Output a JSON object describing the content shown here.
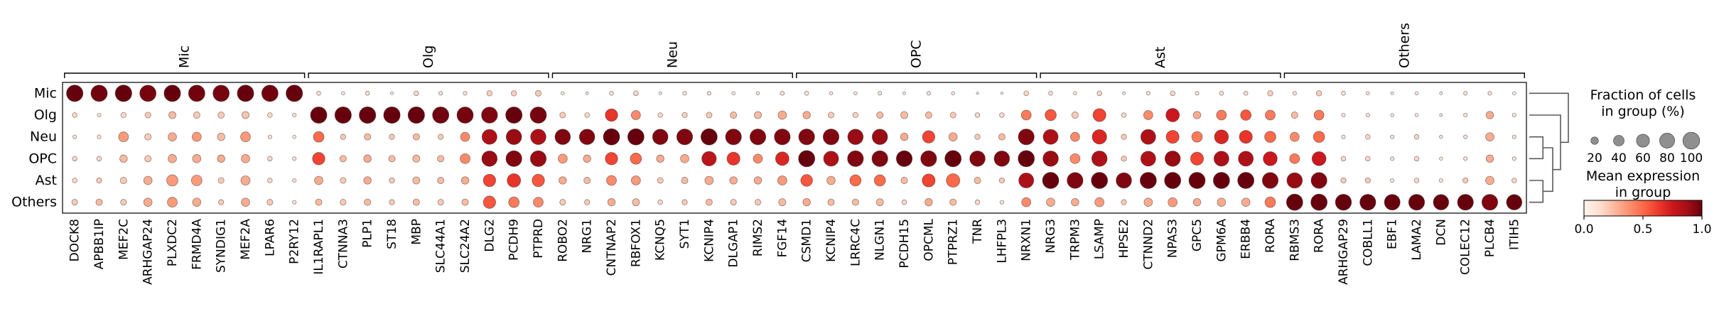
{
  "chart_data": {
    "type": "heatmap",
    "variant": "dotplot",
    "title": "",
    "rows": [
      "Mic",
      "Olg",
      "Neu",
      "OPC",
      "Ast",
      "Others"
    ],
    "col_groups": [
      {
        "name": "Mic",
        "genes": [
          "DOCK8",
          "APBB1IP",
          "MEF2C",
          "ARHGAP24",
          "PLXDC2",
          "FRMD4A",
          "SYNDIG1",
          "MEF2A",
          "LPAR6",
          "P2RY12"
        ]
      },
      {
        "name": "Olg",
        "genes": [
          "IL1RAPL1",
          "CTNNA3",
          "PLP1",
          "ST18",
          "MBP",
          "SLC44A1",
          "SLC24A2",
          "DLG2",
          "PCDH9",
          "PTPRD"
        ]
      },
      {
        "name": "Neu",
        "genes": [
          "ROBO2",
          "NRG1",
          "CNTNAP2",
          "RBFOX1",
          "KCNQ5",
          "SYT1",
          "KCNIP4",
          "DLGAP1",
          "RIMS2",
          "FGF14"
        ]
      },
      {
        "name": "OPC",
        "genes": [
          "CSMD1",
          "KCNIP4",
          "LRRC4C",
          "NLGN1",
          "PCDH15",
          "OPCML",
          "PTPRZ1",
          "TNR",
          "LHFPL3",
          "NRXN1"
        ]
      },
      {
        "name": "Ast",
        "genes": [
          "NRG3",
          "TRPM3",
          "LSAMP",
          "HPSE2",
          "CTNND2",
          "NPAS3",
          "GPC5",
          "GPM6A",
          "ERBB4",
          "RORA"
        ]
      },
      {
        "name": "Others",
        "genes": [
          "RBMS3",
          "RORA",
          "ARHGAP29",
          "COBLL1",
          "EBF1",
          "LAMA2",
          "DCN",
          "COLEC12",
          "PLCB4",
          "ITIH5"
        ]
      }
    ],
    "fraction_pct": [
      [
        97,
        96,
        98,
        95,
        97,
        96,
        95,
        97,
        96,
        98,
        6,
        4,
        6,
        3,
        8,
        5,
        5,
        10,
        10,
        12,
        4,
        3,
        6,
        8,
        3,
        5,
        5,
        4,
        4,
        6,
        6,
        4,
        4,
        5,
        3,
        5,
        4,
        2,
        2,
        8,
        6,
        4,
        8,
        3,
        5,
        8,
        5,
        6,
        6,
        10,
        5,
        10,
        6,
        4,
        3,
        4,
        3,
        5,
        5,
        4
      ],
      [
        8,
        5,
        10,
        12,
        18,
        15,
        14,
        18,
        8,
        5,
        96,
        97,
        98,
        97,
        98,
        96,
        95,
        92,
        96,
        95,
        12,
        8,
        55,
        30,
        8,
        10,
        12,
        15,
        18,
        25,
        20,
        12,
        10,
        15,
        18,
        15,
        12,
        8,
        8,
        35,
        45,
        15,
        60,
        8,
        30,
        65,
        20,
        35,
        40,
        35,
        15,
        35,
        5,
        5,
        4,
        4,
        3,
        5,
        20,
        5
      ],
      [
        5,
        5,
        35,
        15,
        25,
        30,
        20,
        35,
        5,
        4,
        40,
        10,
        15,
        10,
        15,
        10,
        30,
        80,
        85,
        85,
        85,
        85,
        95,
        95,
        85,
        90,
        95,
        90,
        90,
        90,
        90,
        90,
        85,
        85,
        20,
        55,
        25,
        10,
        15,
        90,
        80,
        30,
        75,
        10,
        80,
        60,
        40,
        70,
        60,
        45,
        30,
        45,
        5,
        8,
        5,
        8,
        4,
        5,
        25,
        5
      ],
      [
        8,
        8,
        20,
        15,
        25,
        25,
        20,
        25,
        8,
        5,
        55,
        15,
        20,
        15,
        18,
        15,
        35,
        85,
        90,
        90,
        30,
        20,
        55,
        45,
        20,
        25,
        75,
        60,
        30,
        65,
        95,
        80,
        90,
        90,
        90,
        90,
        95,
        85,
        85,
        95,
        85,
        35,
        85,
        10,
        80,
        85,
        60,
        80,
        80,
        70,
        35,
        70,
        8,
        8,
        5,
        8,
        4,
        5,
        20,
        5
      ],
      [
        8,
        10,
        15,
        25,
        45,
        40,
        12,
        30,
        8,
        5,
        25,
        12,
        20,
        10,
        18,
        15,
        20,
        55,
        65,
        55,
        20,
        15,
        35,
        30,
        12,
        15,
        25,
        20,
        20,
        30,
        50,
        25,
        45,
        45,
        15,
        60,
        65,
        15,
        10,
        80,
        95,
        90,
        95,
        85,
        95,
        95,
        95,
        95,
        95,
        90,
        85,
        90,
        10,
        10,
        5,
        8,
        5,
        10,
        25,
        8
      ],
      [
        12,
        15,
        12,
        25,
        35,
        25,
        10,
        25,
        12,
        5,
        15,
        12,
        15,
        10,
        15,
        12,
        15,
        55,
        40,
        35,
        12,
        10,
        20,
        18,
        8,
        10,
        15,
        12,
        12,
        18,
        20,
        15,
        15,
        18,
        8,
        20,
        15,
        8,
        5,
        30,
        25,
        20,
        30,
        10,
        25,
        30,
        20,
        25,
        25,
        40,
        95,
        95,
        92,
        90,
        88,
        90,
        85,
        90,
        90,
        85
      ]
    ],
    "mean_expression": [
      [
        1.0,
        0.98,
        1.0,
        0.97,
        1.0,
        0.98,
        0.97,
        1.0,
        0.98,
        1.0,
        0.12,
        0.1,
        0.12,
        0.08,
        0.15,
        0.1,
        0.1,
        0.18,
        0.18,
        0.2,
        0.1,
        0.08,
        0.12,
        0.15,
        0.08,
        0.1,
        0.1,
        0.1,
        0.1,
        0.12,
        0.12,
        0.1,
        0.1,
        0.1,
        0.08,
        0.1,
        0.1,
        0.06,
        0.06,
        0.15,
        0.12,
        0.1,
        0.15,
        0.08,
        0.1,
        0.15,
        0.1,
        0.12,
        0.12,
        0.18,
        0.1,
        0.18,
        0.12,
        0.1,
        0.08,
        0.1,
        0.08,
        0.1,
        0.1,
        0.08
      ],
      [
        0.15,
        0.1,
        0.15,
        0.2,
        0.25,
        0.2,
        0.2,
        0.22,
        0.15,
        0.1,
        1.0,
        1.0,
        1.0,
        1.0,
        1.0,
        0.98,
        0.97,
        0.95,
        1.0,
        0.97,
        0.2,
        0.15,
        0.65,
        0.4,
        0.15,
        0.18,
        0.2,
        0.25,
        0.25,
        0.3,
        0.3,
        0.2,
        0.18,
        0.25,
        0.25,
        0.25,
        0.2,
        0.15,
        0.15,
        0.45,
        0.55,
        0.2,
        0.6,
        0.15,
        0.4,
        0.75,
        0.3,
        0.45,
        0.55,
        0.45,
        0.25,
        0.45,
        0.1,
        0.1,
        0.1,
        0.1,
        0.08,
        0.1,
        0.3,
        0.1
      ],
      [
        0.1,
        0.1,
        0.35,
        0.2,
        0.3,
        0.35,
        0.25,
        0.35,
        0.1,
        0.08,
        0.5,
        0.2,
        0.25,
        0.2,
        0.25,
        0.2,
        0.4,
        0.85,
        0.9,
        0.85,
        0.95,
        0.95,
        1.0,
        1.0,
        0.95,
        0.95,
        1.0,
        0.95,
        0.95,
        0.95,
        0.95,
        0.95,
        0.9,
        0.9,
        0.3,
        0.6,
        0.3,
        0.2,
        0.25,
        0.95,
        0.85,
        0.4,
        0.7,
        0.2,
        0.85,
        0.6,
        0.45,
        0.7,
        0.65,
        0.5,
        0.4,
        0.5,
        0.1,
        0.15,
        0.1,
        0.15,
        0.1,
        0.1,
        0.3,
        0.1
      ],
      [
        0.15,
        0.15,
        0.25,
        0.2,
        0.3,
        0.3,
        0.3,
        0.3,
        0.15,
        0.1,
        0.6,
        0.25,
        0.3,
        0.25,
        0.25,
        0.25,
        0.4,
        0.9,
        0.95,
        0.9,
        0.35,
        0.3,
        0.6,
        0.5,
        0.3,
        0.3,
        0.8,
        0.65,
        0.4,
        0.7,
        1.0,
        0.85,
        0.95,
        0.95,
        1.0,
        0.95,
        1.0,
        0.95,
        0.95,
        1.0,
        0.9,
        0.4,
        0.85,
        0.2,
        0.85,
        0.9,
        0.6,
        0.85,
        0.85,
        0.75,
        0.45,
        0.75,
        0.15,
        0.15,
        0.1,
        0.15,
        0.1,
        0.1,
        0.3,
        0.1
      ],
      [
        0.15,
        0.2,
        0.2,
        0.3,
        0.35,
        0.35,
        0.2,
        0.3,
        0.15,
        0.1,
        0.3,
        0.2,
        0.3,
        0.2,
        0.25,
        0.25,
        0.3,
        0.6,
        0.65,
        0.55,
        0.3,
        0.25,
        0.4,
        0.35,
        0.2,
        0.25,
        0.3,
        0.3,
        0.3,
        0.35,
        0.55,
        0.3,
        0.5,
        0.5,
        0.25,
        0.6,
        0.5,
        0.25,
        0.2,
        0.85,
        1.0,
        0.95,
        1.0,
        0.95,
        1.0,
        1.0,
        1.0,
        1.0,
        1.0,
        0.95,
        0.9,
        0.95,
        0.2,
        0.2,
        0.1,
        0.15,
        0.1,
        0.2,
        0.3,
        0.15
      ],
      [
        0.2,
        0.25,
        0.2,
        0.3,
        0.35,
        0.3,
        0.2,
        0.3,
        0.2,
        0.1,
        0.25,
        0.2,
        0.25,
        0.2,
        0.25,
        0.2,
        0.25,
        0.55,
        0.45,
        0.4,
        0.2,
        0.2,
        0.3,
        0.25,
        0.15,
        0.2,
        0.25,
        0.2,
        0.2,
        0.25,
        0.3,
        0.25,
        0.25,
        0.25,
        0.15,
        0.3,
        0.25,
        0.15,
        0.1,
        0.4,
        0.3,
        0.3,
        0.35,
        0.2,
        0.3,
        0.35,
        0.3,
        0.3,
        0.3,
        0.45,
        1.0,
        1.0,
        1.0,
        1.0,
        1.0,
        1.0,
        1.0,
        1.0,
        0.95,
        1.0
      ]
    ],
    "size_legend": {
      "title_lines": [
        "Fraction of cells",
        "in group (%)"
      ],
      "values": [
        20,
        40,
        60,
        80,
        100
      ],
      "dot_color": "#8f8f8f"
    },
    "color_legend": {
      "title_lines": [
        "Mean expression",
        "in group"
      ],
      "ticks": [
        "0.0",
        "0.5",
        "1.0"
      ],
      "colormap": "Reds",
      "positions": [
        0,
        0.125,
        0.25,
        0.375,
        0.5,
        0.625,
        0.75,
        0.875,
        1
      ],
      "colors": [
        "#fff5f0",
        "#fee0d2",
        "#fcbba1",
        "#fc9272",
        "#fb6a4a",
        "#ef3b2c",
        "#cb181d",
        "#a50f15",
        "#67000d"
      ]
    },
    "dendrogram": {
      "order": [
        "Mic",
        "Olg",
        "Neu",
        "OPC",
        "Ast",
        "Others"
      ],
      "merges": [
        {
          "a": 2,
          "b": 3,
          "depth": 0.35
        },
        {
          "a": 4,
          "b": 5,
          "depth": 0.35
        },
        {
          "a": "m0",
          "b": "m1",
          "depth": 0.6
        },
        {
          "a": 1,
          "b": "m2",
          "depth": 0.8
        },
        {
          "a": 0,
          "b": "m3",
          "depth": 1.0
        }
      ]
    }
  }
}
